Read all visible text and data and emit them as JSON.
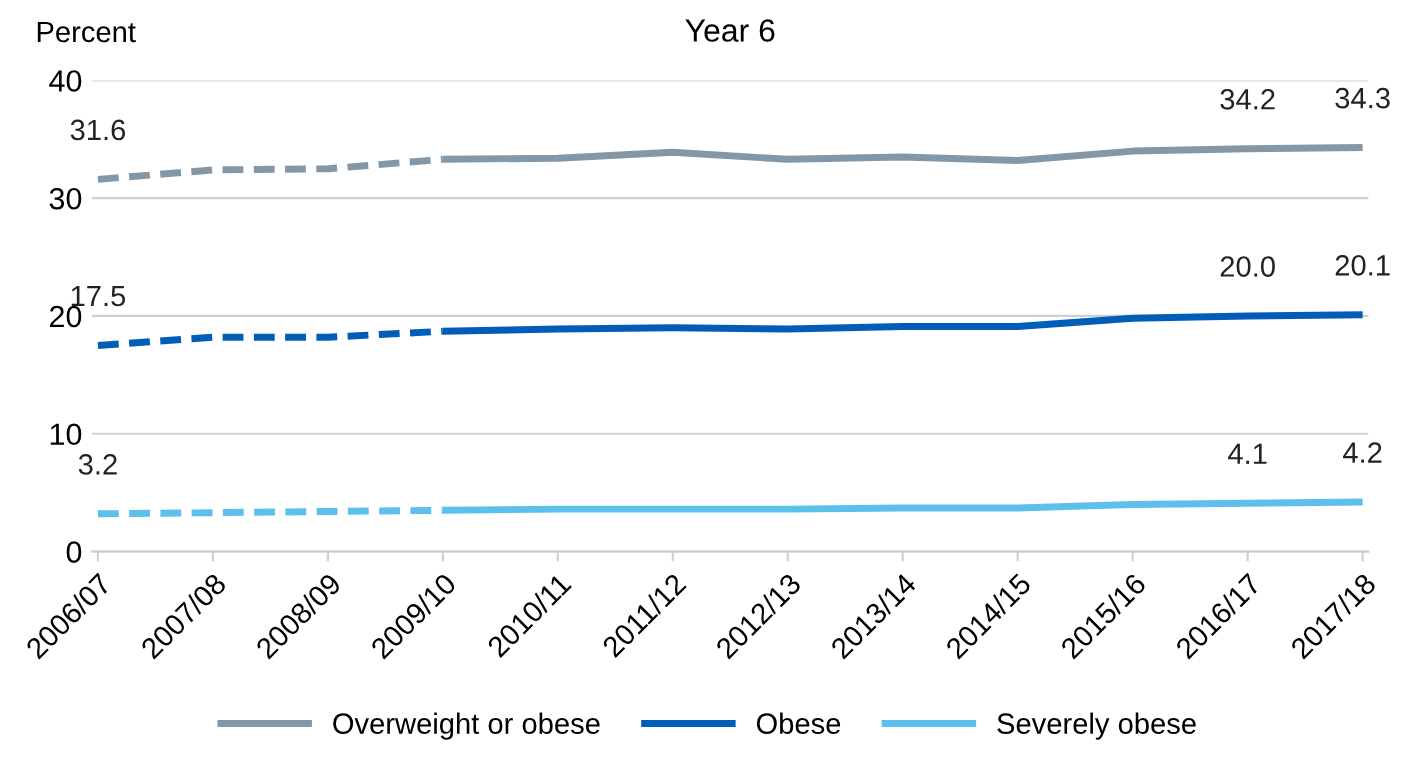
{
  "chart_data": {
    "type": "line",
    "title": "Year 6",
    "ylabel": "Percent",
    "categories": [
      "2006/07",
      "2007/08",
      "2008/09",
      "2009/10",
      "2010/11",
      "2011/12",
      "2012/13",
      "2013/14",
      "2014/15",
      "2015/16",
      "2016/17",
      "2017/18"
    ],
    "ylim": [
      0,
      40
    ],
    "yticks": [
      0,
      10,
      20,
      30,
      40
    ],
    "grid": "y",
    "legend": "bottom",
    "marker": "none",
    "series": [
      {
        "color": "#8497a7",
        "line_style": "dashed",
        "values": [
          31.6,
          32.4,
          32.5,
          33.3,
          null,
          null,
          null,
          null,
          null,
          null,
          null,
          null
        ],
        "value_labels": [
          "31.6",
          null,
          null,
          null,
          null,
          null,
          null,
          null,
          null,
          null,
          null,
          null
        ]
      },
      {
        "name": "Overweight or obese",
        "color": "#8497a7",
        "line_style": "solid",
        "values": [
          null,
          null,
          null,
          33.3,
          33.4,
          33.9,
          33.3,
          33.5,
          33.2,
          34.0,
          34.2,
          34.3
        ],
        "value_labels": [
          null,
          null,
          null,
          null,
          null,
          null,
          null,
          null,
          null,
          null,
          "34.2",
          "34.3"
        ]
      },
      {
        "color": "#005eb8",
        "line_style": "dashed",
        "values": [
          17.5,
          18.2,
          18.2,
          18.7,
          null,
          null,
          null,
          null,
          null,
          null,
          null,
          null
        ],
        "value_labels": [
          "17.5",
          null,
          null,
          null,
          null,
          null,
          null,
          null,
          null,
          null,
          null,
          null
        ]
      },
      {
        "name": "Obese",
        "color": "#005eb8",
        "line_style": "solid",
        "values": [
          null,
          null,
          null,
          18.7,
          18.9,
          19.0,
          18.9,
          19.1,
          19.1,
          19.8,
          20.0,
          20.1
        ],
        "value_labels": [
          null,
          null,
          null,
          null,
          null,
          null,
          null,
          null,
          null,
          null,
          "20.0",
          "20.1"
        ]
      },
      {
        "color": "#5bc0eb",
        "line_style": "dashed",
        "values": [
          3.2,
          3.3,
          3.4,
          3.5,
          null,
          null,
          null,
          null,
          null,
          null,
          null,
          null
        ],
        "value_labels": [
          "3.2",
          null,
          null,
          null,
          null,
          null,
          null,
          null,
          null,
          null,
          null,
          null
        ]
      },
      {
        "name": "Severely obese",
        "color": "#5bc0eb",
        "line_style": "solid",
        "values": [
          null,
          null,
          null,
          3.5,
          3.6,
          3.6,
          3.6,
          3.7,
          3.7,
          4.0,
          4.1,
          4.2
        ],
        "value_labels": [
          null,
          null,
          null,
          null,
          null,
          null,
          null,
          null,
          null,
          null,
          "4.1",
          "4.2"
        ]
      }
    ]
  }
}
